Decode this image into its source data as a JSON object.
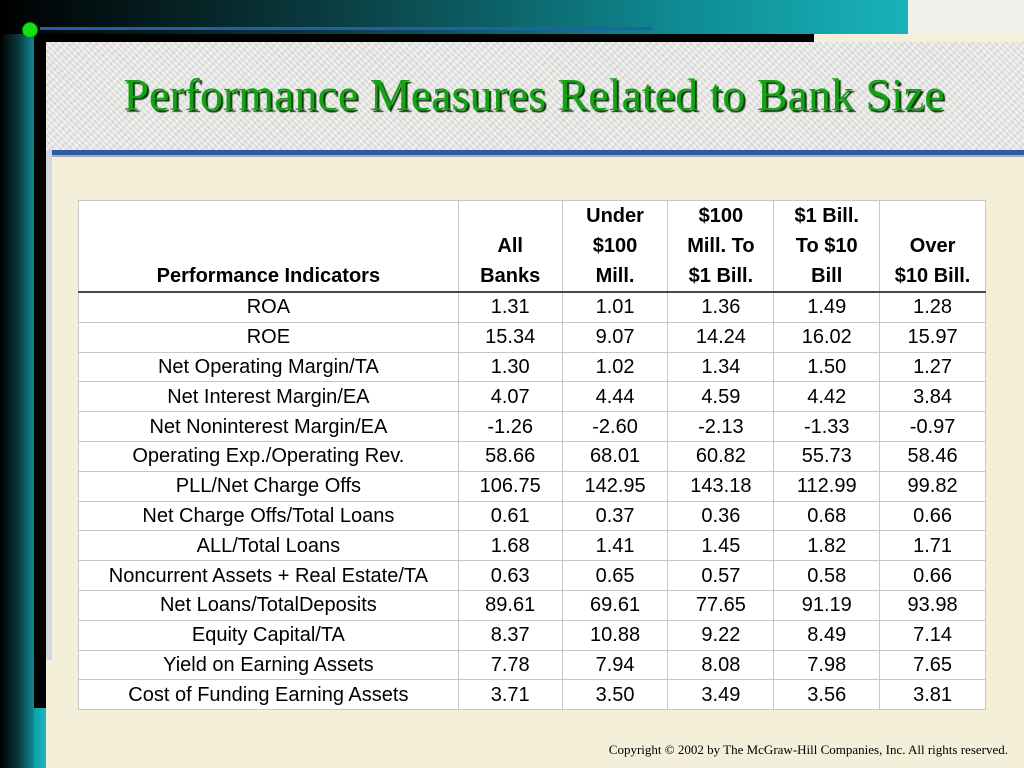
{
  "slide": {
    "title": "Performance Measures Related to Bank Size",
    "copyright": "Copyright © 2002 by The McGraw-Hill Companies, Inc.  All rights reserved."
  },
  "table": {
    "headers": [
      "Performance Indicators",
      "All\nBanks",
      "Under\n$100\nMill.",
      "$100\nMill. To\n$1 Bill.",
      "$1 Bill.\nTo $10\nBill",
      "Over\n$10 Bill."
    ],
    "rows": [
      [
        "ROA",
        "1.31",
        "1.01",
        "1.36",
        "1.49",
        "1.28"
      ],
      [
        "ROE",
        "15.34",
        "9.07",
        "14.24",
        "16.02",
        "15.97"
      ],
      [
        "Net Operating Margin/TA",
        "1.30",
        "1.02",
        "1.34",
        "1.50",
        "1.27"
      ],
      [
        "Net Interest Margin/EA",
        "4.07",
        "4.44",
        "4.59",
        "4.42",
        "3.84"
      ],
      [
        "Net Noninterest Margin/EA",
        "-1.26",
        "-2.60",
        "-2.13",
        "-1.33",
        "-0.97"
      ],
      [
        "Operating Exp./Operating Rev.",
        "58.66",
        "68.01",
        "60.82",
        "55.73",
        "58.46"
      ],
      [
        "PLL/Net Charge Offs",
        "106.75",
        "142.95",
        "143.18",
        "112.99",
        "99.82"
      ],
      [
        "Net Charge Offs/Total Loans",
        "0.61",
        "0.37",
        "0.36",
        "0.68",
        "0.66"
      ],
      [
        "ALL/Total Loans",
        "1.68",
        "1.41",
        "1.45",
        "1.82",
        "1.71"
      ],
      [
        "Noncurrent Assets + Real Estate/TA",
        "0.63",
        "0.65",
        "0.57",
        "0.58",
        "0.66"
      ],
      [
        "Net Loans/TotalDeposits",
        "89.61",
        "69.61",
        "77.65",
        "91.19",
        "93.98"
      ],
      [
        "Equity Capital/TA",
        "8.37",
        "10.88",
        "9.22",
        "8.49",
        "7.14"
      ],
      [
        "Yield on Earning Assets",
        "7.78",
        "7.94",
        "8.08",
        "7.98",
        "7.65"
      ],
      [
        "Cost of Funding Earning Assets",
        "3.71",
        "3.50",
        "3.49",
        "3.56",
        "3.81"
      ]
    ]
  },
  "colors": {
    "title": "#13a313",
    "background": "#f3efd9",
    "accent_teal": "#0f8b93",
    "rule_blue": "#2d5aa5",
    "bullet": "#12e012"
  }
}
